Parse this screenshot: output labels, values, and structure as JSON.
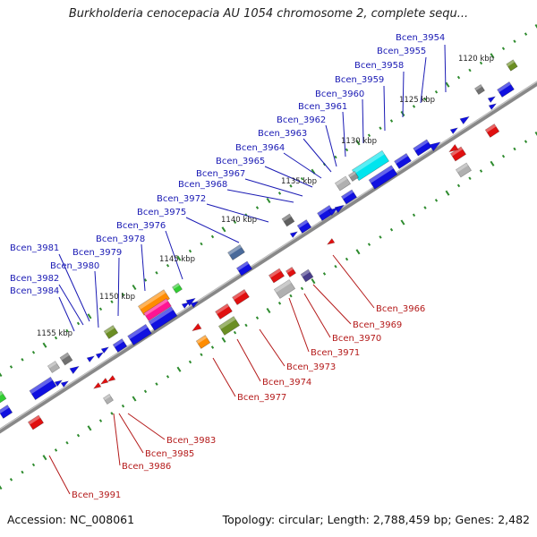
{
  "title": "Burkholderia cenocepacia AU 1054 chromosome 2, complete sequ...",
  "accession": "Accession: NC_008061",
  "summary": "Topology: circular; Length: 2,788,459 bp; Genes: 2,482",
  "colors": {
    "plus_strand_gene": "#1010e0",
    "minus_strand_gene": "#e01010",
    "plus_label": "#1a1ab4",
    "minus_label": "#b41a1a",
    "backbone": "#7a7a7a",
    "tick": "#2e8b2e"
  },
  "scale_ticks": [
    "1120 kbp",
    "1125 kbp",
    "1130 kbp",
    "1135 kbp",
    "1140 kbp",
    "1145 kbp",
    "1150 kbp",
    "1155 kbp"
  ],
  "plus_labels": [
    "Bcen_3954",
    "Bcen_3955",
    "Bcen_3958",
    "Bcen_3959",
    "Bcen_3960",
    "Bcen_3961",
    "Bcen_3962",
    "Bcen_3963",
    "Bcen_3964",
    "Bcen_3965",
    "Bcen_3967",
    "Bcen_3968",
    "Bcen_3972",
    "Bcen_3975",
    "Bcen_3976",
    "Bcen_3978",
    "Bcen_3979",
    "Bcen_3981",
    "Bcen_3980",
    "Bcen_3982",
    "Bcen_3984"
  ],
  "minus_labels": [
    "Bcen_3966",
    "Bcen_3969",
    "Bcen_3970",
    "Bcen_3971",
    "Bcen_3973",
    "Bcen_3974",
    "Bcen_3977",
    "Bcen_3983",
    "Bcen_3985",
    "Bcen_3986",
    "Bcen_3991"
  ]
}
